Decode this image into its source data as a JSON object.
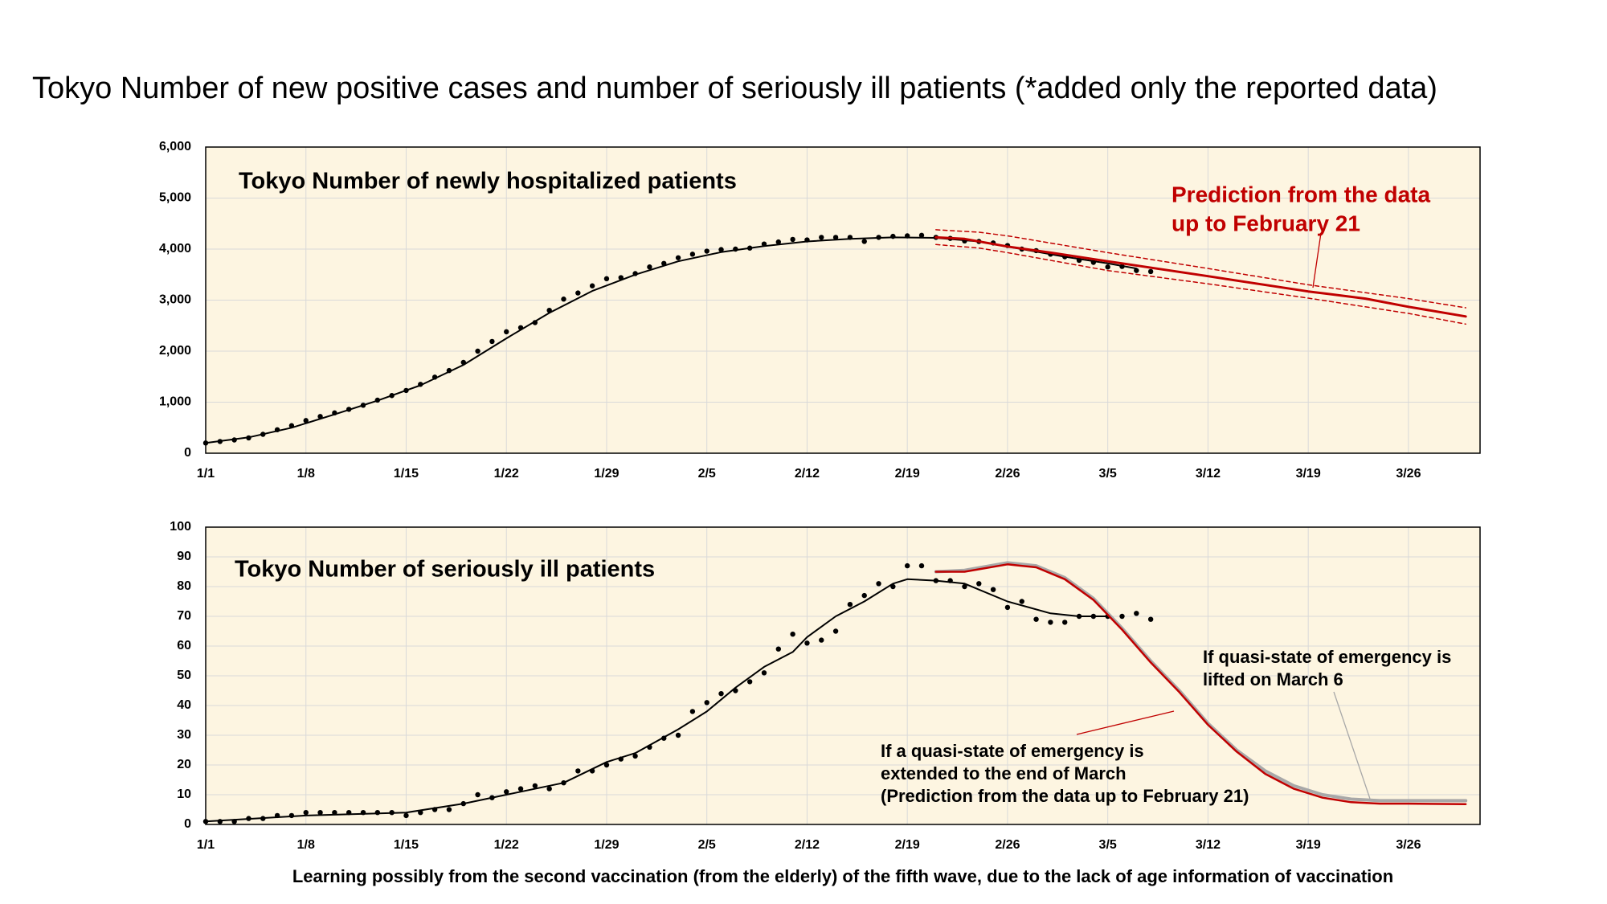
{
  "title": "Tokyo  Number of new positive cases and number of seriously ill patients (*added only the reported data)",
  "chart_data": [
    {
      "type": "line",
      "title": "Tokyo  Number of newly hospitalized patients",
      "annotations": [
        {
          "lines": [
            "Prediction from the data",
            "up to February 21"
          ],
          "color": "#c00000"
        }
      ],
      "xlim": [
        1,
        90
      ],
      "xticks": [
        {
          "value": 1,
          "label": "1/1"
        },
        {
          "value": 8,
          "label": "1/8"
        },
        {
          "value": 15,
          "label": "1/15"
        },
        {
          "value": 22,
          "label": "1/22"
        },
        {
          "value": 29,
          "label": "1/29"
        },
        {
          "value": 36,
          "label": "2/5"
        },
        {
          "value": 43,
          "label": "2/12"
        },
        {
          "value": 50,
          "label": "2/19"
        },
        {
          "value": 57,
          "label": "2/26"
        },
        {
          "value": 64,
          "label": "3/5"
        },
        {
          "value": 71,
          "label": "3/12"
        },
        {
          "value": 78,
          "label": "3/19"
        },
        {
          "value": 85,
          "label": "3/26"
        }
      ],
      "ylim": [
        0,
        6000
      ],
      "yticks": [
        0,
        {
          "value": 1000,
          "label": "1,000"
        },
        {
          "value": 2000,
          "label": "2,000"
        },
        {
          "value": 3000,
          "label": "3,000"
        },
        {
          "value": 4000,
          "label": "4,000"
        },
        {
          "value": 5000,
          "label": "5,000"
        },
        {
          "value": 6000,
          "label": "6,000"
        }
      ],
      "grid": true,
      "series": [
        {
          "style": "dots",
          "color": "#000000",
          "x": [
            1,
            2,
            3,
            4,
            5,
            6,
            7,
            8,
            9,
            10,
            11,
            12,
            13,
            14,
            15,
            16,
            17,
            18,
            19,
            20,
            21,
            22,
            23,
            24,
            25,
            26,
            27,
            28,
            29,
            30,
            31,
            32,
            33,
            34,
            35,
            36,
            37,
            38,
            39,
            40,
            41,
            42,
            43,
            44,
            45,
            46,
            47,
            48,
            49,
            50,
            51,
            52,
            53,
            54,
            55,
            56,
            57,
            58,
            59,
            60,
            61,
            62,
            63,
            64,
            65,
            66,
            67
          ],
          "values": [
            200,
            230,
            260,
            300,
            370,
            460,
            540,
            640,
            720,
            790,
            860,
            940,
            1040,
            1130,
            1230,
            1350,
            1490,
            1620,
            1780,
            2000,
            2190,
            2380,
            2460,
            2560,
            2800,
            3020,
            3140,
            3280,
            3420,
            3440,
            3520,
            3650,
            3720,
            3830,
            3900,
            3960,
            3990,
            4000,
            4020,
            4100,
            4140,
            4190,
            4180,
            4230,
            4230,
            4230,
            4150,
            4230,
            4250,
            4260,
            4270,
            4230,
            4210,
            4160,
            4150,
            4120,
            4070,
            4000,
            3970,
            3900,
            3850,
            3780,
            3740,
            3650,
            3660,
            3580,
            3560
          ]
        },
        {
          "style": "line",
          "color": "#000000",
          "width": 2,
          "x": [
            1,
            4,
            7,
            10,
            13,
            16,
            19,
            22,
            25,
            28,
            31,
            34,
            37,
            40,
            43,
            46,
            49,
            52,
            55,
            58,
            61,
            64,
            66
          ],
          "values": [
            200,
            310,
            500,
            760,
            1030,
            1330,
            1730,
            2250,
            2750,
            3180,
            3500,
            3760,
            3940,
            4060,
            4150,
            4200,
            4230,
            4220,
            4150,
            4000,
            3850,
            3720,
            3620
          ]
        },
        {
          "style": "line",
          "color": "#c00000",
          "width": 3,
          "x": [
            52,
            54,
            57,
            60,
            64,
            71,
            78,
            82,
            85,
            89
          ],
          "values": [
            4230,
            4200,
            4050,
            3930,
            3760,
            3470,
            3170,
            3030,
            2870,
            2680
          ]
        },
        {
          "style": "dashed",
          "color": "#c00000",
          "width": 1.5,
          "x": [
            52,
            55,
            57,
            64,
            71,
            78,
            85,
            89
          ],
          "values": [
            4380,
            4330,
            4260,
            3930,
            3620,
            3300,
            3030,
            2850
          ]
        },
        {
          "style": "dashed",
          "color": "#c00000",
          "width": 1.5,
          "x": [
            52,
            55,
            57,
            64,
            71,
            78,
            85,
            89
          ],
          "values": [
            4090,
            4020,
            3930,
            3580,
            3320,
            3040,
            2740,
            2530
          ]
        }
      ]
    },
    {
      "type": "line",
      "title": "Tokyo  Number of seriously ill patients",
      "annotations": [
        {
          "lines": [
            "If quasi-state of emergency is",
            "lifted on March 6"
          ],
          "color": "#000000"
        },
        {
          "lines": [
            "If a quasi-state of emergency is",
            "extended to the end of March",
            "(Prediction from the data up to February 21)"
          ],
          "color": "#000000"
        }
      ],
      "xlabel": "Learning possibly from the second vaccination (from the elderly) of the fifth wave, due to the lack of age information of vaccination",
      "xlim": [
        1,
        90
      ],
      "xticks": [
        {
          "value": 1,
          "label": "1/1"
        },
        {
          "value": 8,
          "label": "1/8"
        },
        {
          "value": 15,
          "label": "1/15"
        },
        {
          "value": 22,
          "label": "1/22"
        },
        {
          "value": 29,
          "label": "1/29"
        },
        {
          "value": 36,
          "label": "2/5"
        },
        {
          "value": 43,
          "label": "2/12"
        },
        {
          "value": 50,
          "label": "2/19"
        },
        {
          "value": 57,
          "label": "2/26"
        },
        {
          "value": 64,
          "label": "3/5"
        },
        {
          "value": 71,
          "label": "3/12"
        },
        {
          "value": 78,
          "label": "3/19"
        },
        {
          "value": 85,
          "label": "3/26"
        }
      ],
      "ylim": [
        0,
        100
      ],
      "yticks": [
        0,
        10,
        20,
        30,
        40,
        50,
        60,
        70,
        80,
        90,
        100
      ],
      "grid": true,
      "series": [
        {
          "style": "dots",
          "color": "#000000",
          "x": [
            1,
            2,
            3,
            4,
            5,
            6,
            7,
            8,
            9,
            10,
            11,
            12,
            13,
            14,
            15,
            16,
            17,
            18,
            19,
            20,
            21,
            22,
            23,
            24,
            25,
            26,
            27,
            28,
            29,
            30,
            31,
            32,
            33,
            34,
            35,
            36,
            37,
            38,
            39,
            40,
            41,
            42,
            43,
            44,
            45,
            46,
            47,
            48,
            49,
            50,
            51,
            52,
            53,
            54,
            55,
            56,
            57,
            58,
            59,
            60,
            61,
            62,
            63,
            64,
            65,
            66,
            67
          ],
          "values": [
            1,
            1,
            1,
            2,
            2,
            3,
            3,
            4,
            4,
            4,
            4,
            4,
            4,
            4,
            3,
            4,
            5,
            5,
            7,
            10,
            9,
            11,
            12,
            13,
            12,
            14,
            18,
            18,
            20,
            22,
            23,
            26,
            29,
            30,
            38,
            41,
            44,
            45,
            48,
            51,
            59,
            64,
            61,
            62,
            65,
            74,
            77,
            81,
            80,
            87,
            87,
            82,
            82,
            80,
            81,
            79,
            73,
            75,
            69,
            68,
            68,
            70,
            70,
            70,
            70,
            71,
            69
          ]
        },
        {
          "style": "line",
          "color": "#000000",
          "width": 2,
          "x": [
            1,
            8,
            15,
            19,
            22,
            26,
            29,
            31,
            34,
            36,
            38,
            40,
            42,
            43,
            45,
            47,
            49,
            50,
            52,
            54,
            57,
            60,
            62,
            64
          ],
          "values": [
            1,
            3,
            4,
            7,
            10,
            14,
            21,
            24,
            32,
            38,
            46,
            53,
            58,
            63,
            70,
            75,
            81,
            82.5,
            82,
            81,
            75,
            71,
            70,
            70
          ]
        },
        {
          "style": "line",
          "color": "#a8a8a8",
          "width": 4,
          "x": [
            52,
            54,
            57,
            59,
            61,
            63,
            65,
            67,
            69,
            71,
            73,
            75,
            77,
            79,
            81,
            83,
            85,
            89
          ],
          "values": [
            85,
            85.5,
            88,
            87,
            83,
            76,
            66,
            55,
            45,
            34,
            25,
            18,
            13,
            10,
            8.5,
            8,
            8,
            8
          ]
        },
        {
          "style": "line",
          "color": "#c00000",
          "width": 2.5,
          "x": [
            52,
            54,
            57,
            59,
            61,
            63,
            65,
            67,
            69,
            71,
            73,
            75,
            77,
            79,
            81,
            83,
            85,
            89
          ],
          "values": [
            85,
            85,
            87.5,
            86.5,
            82.5,
            75.5,
            65.5,
            54.5,
            44.5,
            33.5,
            24.5,
            17,
            12,
            9,
            7.5,
            7,
            7,
            6.8
          ]
        }
      ]
    }
  ]
}
